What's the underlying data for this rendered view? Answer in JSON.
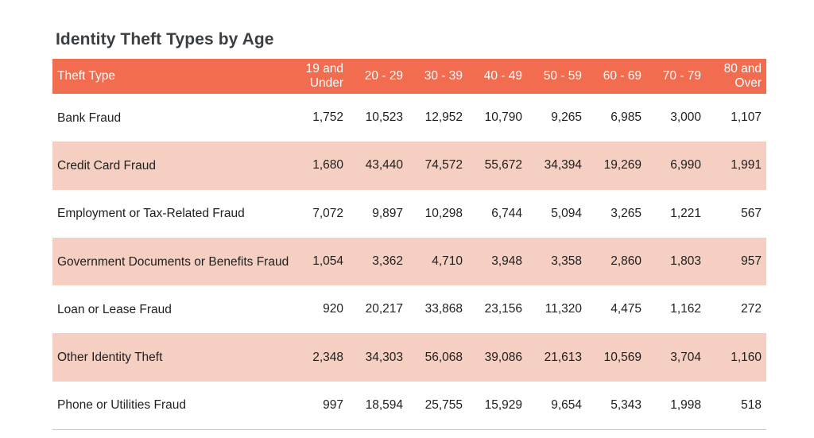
{
  "chart_data": {
    "type": "table",
    "title": "Identity Theft Types by Age",
    "columns": [
      "Theft Type",
      "19 and Under",
      "20 - 29",
      "30 - 39",
      "40 - 49",
      "50 - 59",
      "60 - 69",
      "70 - 79",
      "80 and Over"
    ],
    "rows": [
      {
        "label": "Bank Fraud",
        "values": [
          "1,752",
          "10,523",
          "12,952",
          "10,790",
          "9,265",
          "6,985",
          "3,000",
          "1,107"
        ]
      },
      {
        "label": "Credit Card Fraud",
        "values": [
          "1,680",
          "43,440",
          "74,572",
          "55,672",
          "34,394",
          "19,269",
          "6,990",
          "1,991"
        ]
      },
      {
        "label": "Employment or Tax-Related Fraud",
        "values": [
          "7,072",
          "9,897",
          "10,298",
          "6,744",
          "5,094",
          "3,265",
          "1,221",
          "567"
        ]
      },
      {
        "label": "Government Documents or Benefits Fraud",
        "values": [
          "1,054",
          "3,362",
          "4,710",
          "3,948",
          "3,358",
          "2,860",
          "1,803",
          "957"
        ]
      },
      {
        "label": "Loan or Lease Fraud",
        "values": [
          "920",
          "20,217",
          "33,868",
          "23,156",
          "11,320",
          "4,475",
          "1,162",
          "272"
        ]
      },
      {
        "label": "Other Identity Theft",
        "values": [
          "2,348",
          "34,303",
          "56,068",
          "39,086",
          "21,613",
          "10,569",
          "3,704",
          "1,160"
        ]
      },
      {
        "label": "Phone or Utilities Fraud",
        "values": [
          "997",
          "18,594",
          "25,755",
          "15,929",
          "9,654",
          "5,343",
          "1,998",
          "518"
        ]
      }
    ],
    "header_color": "#f26c4f",
    "band_color": "#f4cfc2"
  }
}
